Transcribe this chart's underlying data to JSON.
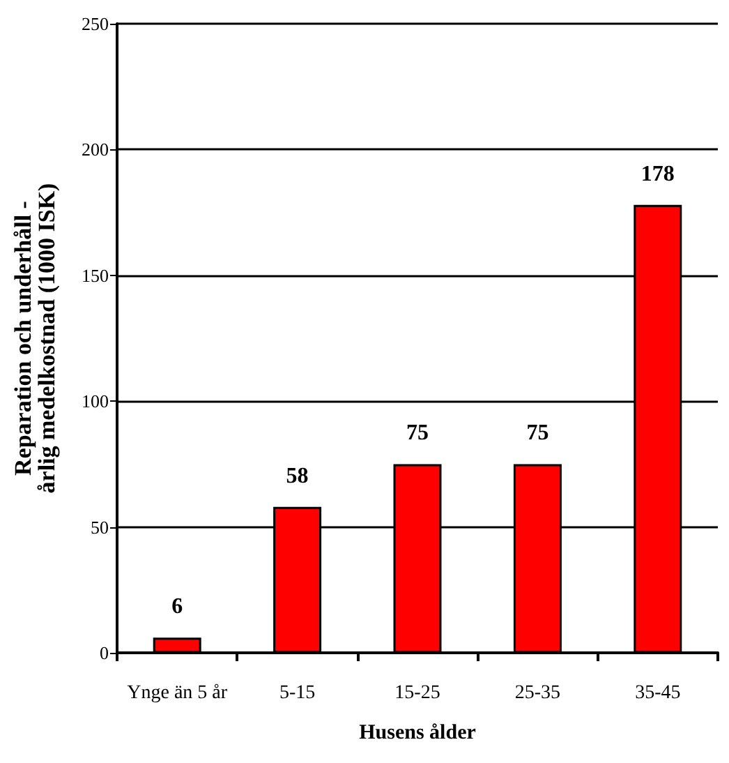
{
  "chart_data": {
    "type": "bar",
    "xlabel": "Husens ålder",
    "ylabel": "Reparation och underhåll -\nårlig medelkostnad (1000 ISK)",
    "categories": [
      "Ynge än 5 år",
      "5-15",
      "15-25",
      "25-35",
      "35-45"
    ],
    "values": [
      6,
      58,
      75,
      75,
      178
    ],
    "color": "#ff0000",
    "ylim": [
      0,
      250
    ],
    "yticks": [
      0,
      50,
      100,
      150,
      200,
      250
    ],
    "grid": "y",
    "data_labels": true
  }
}
